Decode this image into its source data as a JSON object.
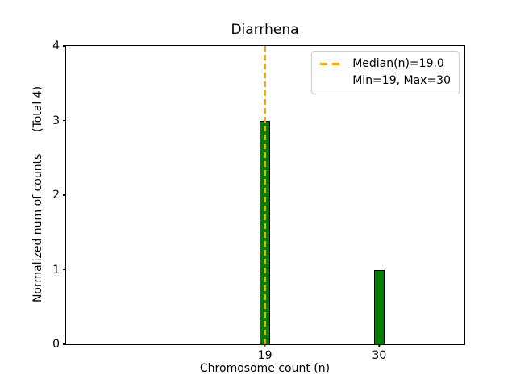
{
  "colors": {
    "bar_fill": "#008000",
    "bar_edge": "#000000",
    "median_line": "#FFA500",
    "legend_border": "#cccccc",
    "axis": "#000000",
    "text": "#000000",
    "background": "#ffffff"
  },
  "chart_data": {
    "type": "bar",
    "title": "Diarrhena",
    "xlabel": "Chromosome count (n)",
    "ylabel": "Normalized num of counts      (Total 4)",
    "categories": [
      19,
      30
    ],
    "values": [
      3,
      1
    ],
    "total_counts": 4,
    "bar_width": 1.0,
    "xlim": [
      -0.14,
      38.2
    ],
    "ylim": [
      0,
      4
    ],
    "yticks": [
      0,
      1,
      2,
      3,
      4
    ],
    "median_x": 19.0,
    "min": 19,
    "max": 30,
    "legend": [
      "Median(n)=19.0",
      "Min=19, Max=30"
    ],
    "legend_position": "upper right",
    "grid": false
  }
}
